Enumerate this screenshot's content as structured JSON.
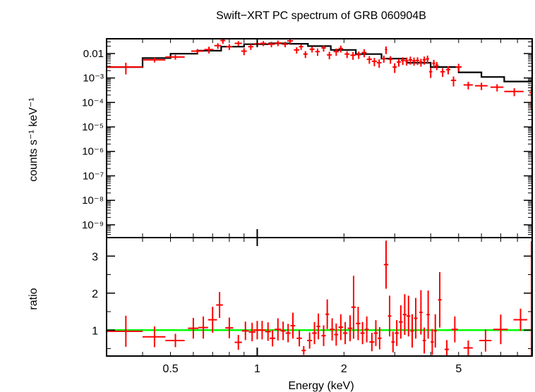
{
  "chart_data": [
    {
      "type": "line",
      "title": "Swift−XRT PC spectrum of GRB 060904B",
      "ylabel": "counts s⁻¹ keV⁻¹",
      "xscale": "log",
      "yscale": "log",
      "xlim": [
        0.3,
        9.0
      ],
      "ylim": [
        3e-10,
        0.04
      ],
      "ytick_labels": [
        "0.01",
        "10⁻³",
        "10⁻⁴",
        "10⁻⁵",
        "10⁻⁶",
        "10⁻⁷",
        "10⁻⁸",
        "10⁻⁹"
      ],
      "ytick_values": [
        0.01,
        0.001,
        0.0001,
        1e-05,
        1e-06,
        1e-07,
        1e-08,
        1e-09
      ],
      "model_color": "#000000",
      "data_color": "#ff0000",
      "model": {
        "x": [
          0.3,
          0.4,
          0.4,
          0.5,
          0.5,
          0.62,
          0.62,
          0.75,
          0.75,
          0.9,
          0.9,
          1.1,
          1.1,
          1.3,
          1.3,
          1.5,
          1.5,
          1.8,
          1.8,
          2.2,
          2.2,
          2.7,
          2.7,
          3.3,
          3.3,
          4.0,
          4.0,
          5.0,
          5.0,
          6.0,
          6.0,
          7.2,
          7.2,
          9.0
        ],
        "y": [
          0.0028,
          0.0028,
          0.0065,
          0.0065,
          0.0098,
          0.0098,
          0.013,
          0.013,
          0.019,
          0.019,
          0.024,
          0.024,
          0.026,
          0.026,
          0.025,
          0.025,
          0.02,
          0.02,
          0.014,
          0.014,
          0.0095,
          0.0095,
          0.0062,
          0.0062,
          0.0042,
          0.0042,
          0.0028,
          0.0028,
          0.0017,
          0.0017,
          0.0011,
          0.0011,
          0.00072,
          0.00072
        ]
      },
      "series": [
        {
          "x": [
            0.35,
            0.44,
            0.52,
            0.62,
            0.68,
            0.73,
            0.76,
            0.8,
            0.86,
            0.9,
            0.95,
            1.0,
            1.05,
            1.12,
            1.18,
            1.25,
            1.3,
            1.37,
            1.42,
            1.47,
            1.55,
            1.62,
            1.7,
            1.78,
            1.88,
            1.95,
            2.05,
            2.15,
            2.25,
            2.35,
            2.45,
            2.55,
            2.65,
            2.75,
            2.8,
            2.9,
            3.0,
            3.1,
            3.2,
            3.3,
            3.4,
            3.5,
            3.6,
            3.7,
            3.8,
            3.9,
            4.0,
            4.1,
            4.2,
            4.4,
            4.6,
            4.8,
            5.0,
            5.4,
            6.0,
            6.8,
            7.8,
            9.0
          ],
          "xerr": [
            0.05,
            0.04,
            0.04,
            0.03,
            0.025,
            0.02,
            0.015,
            0.02,
            0.025,
            0.02,
            0.02,
            0.025,
            0.025,
            0.03,
            0.03,
            0.03,
            0.03,
            0.03,
            0.025,
            0.025,
            0.03,
            0.03,
            0.03,
            0.035,
            0.04,
            0.035,
            0.04,
            0.045,
            0.045,
            0.045,
            0.05,
            0.05,
            0.05,
            0.05,
            0.025,
            0.05,
            0.05,
            0.05,
            0.05,
            0.05,
            0.05,
            0.05,
            0.05,
            0.05,
            0.05,
            0.05,
            0.05,
            0.05,
            0.06,
            0.08,
            0.08,
            0.1,
            0.12,
            0.2,
            0.3,
            0.35,
            0.6,
            0.2
          ],
          "y": [
            0.0028,
            0.0055,
            0.0072,
            0.0125,
            0.0145,
            0.021,
            0.034,
            0.019,
            0.026,
            0.0125,
            0.019,
            0.025,
            0.026,
            0.024,
            0.027,
            0.024,
            0.033,
            0.014,
            0.019,
            0.0095,
            0.015,
            0.012,
            0.017,
            0.0088,
            0.012,
            0.016,
            0.0095,
            0.0085,
            0.009,
            0.011,
            0.0058,
            0.0048,
            0.0042,
            0.0062,
            0.0145,
            0.0058,
            0.0028,
            0.0045,
            0.0052,
            0.005,
            0.0055,
            0.005,
            0.0052,
            0.0045,
            0.0055,
            0.006,
            0.0018,
            0.004,
            0.0033,
            0.0018,
            0.0022,
            0.0008,
            0.0028,
            0.00052,
            0.00048,
            0.00042,
            0.00028,
            0.00025
          ],
          "yerr": [
            0.0014,
            0.0012,
            0.0016,
            0.0028,
            0.0045,
            0.0055,
            0.009,
            0.005,
            0.006,
            0.004,
            0.005,
            0.006,
            0.006,
            0.006,
            0.007,
            0.006,
            0.008,
            0.004,
            0.005,
            0.003,
            0.004,
            0.004,
            0.005,
            0.003,
            0.004,
            0.005,
            0.003,
            0.003,
            0.003,
            0.004,
            0.002,
            0.0018,
            0.0016,
            0.002,
            0.005,
            0.002,
            0.0012,
            0.0016,
            0.0018,
            0.0018,
            0.002,
            0.0018,
            0.0018,
            0.0016,
            0.002,
            0.0022,
            0.0008,
            0.0015,
            0.0012,
            0.0007,
            0.0008,
            0.00035,
            0.001,
            0.00018,
            0.00016,
            0.00014,
            0.0001,
            0.0002
          ]
        }
      ]
    },
    {
      "type": "line",
      "xlabel": "Energy (keV)",
      "ylabel": "ratio",
      "xscale": "log",
      "xlim": [
        0.3,
        9.0
      ],
      "ylim": [
        0.3,
        3.5
      ],
      "xtick_labels": [
        "0.5",
        "1",
        "2",
        "5"
      ],
      "xtick_values": [
        0.5,
        1,
        2,
        5
      ],
      "ytick_labels": [
        "1",
        "2",
        "3"
      ],
      "ytick_values": [
        1,
        2,
        3
      ],
      "reference_line": 1.0,
      "reference_color": "#00ff00",
      "data_color": "#ff0000",
      "series": [
        {
          "x": [
            0.35,
            0.44,
            0.52,
            0.6,
            0.65,
            0.7,
            0.74,
            0.8,
            0.86,
            0.91,
            0.96,
            1.0,
            1.04,
            1.09,
            1.13,
            1.18,
            1.23,
            1.28,
            1.33,
            1.4,
            1.45,
            1.52,
            1.58,
            1.63,
            1.7,
            1.75,
            1.82,
            1.88,
            1.95,
            2.02,
            2.1,
            2.16,
            2.24,
            2.32,
            2.4,
            2.5,
            2.58,
            2.66,
            2.8,
            2.88,
            2.96,
            3.05,
            3.15,
            3.25,
            3.35,
            3.45,
            3.55,
            3.7,
            3.8,
            3.92,
            4.05,
            4.15,
            4.3,
            4.55,
            4.85,
            5.4,
            6.2,
            7.0,
            8.2,
            9.0
          ],
          "xerr": [
            0.05,
            0.04,
            0.04,
            0.025,
            0.025,
            0.025,
            0.02,
            0.025,
            0.025,
            0.025,
            0.025,
            0.03,
            0.03,
            0.025,
            0.025,
            0.03,
            0.025,
            0.025,
            0.025,
            0.03,
            0.025,
            0.03,
            0.03,
            0.025,
            0.03,
            0.025,
            0.035,
            0.03,
            0.035,
            0.035,
            0.04,
            0.04,
            0.04,
            0.04,
            0.04,
            0.05,
            0.04,
            0.04,
            0.05,
            0.04,
            0.04,
            0.05,
            0.05,
            0.05,
            0.05,
            0.05,
            0.05,
            0.05,
            0.05,
            0.05,
            0.05,
            0.05,
            0.06,
            0.08,
            0.12,
            0.2,
            0.3,
            0.4,
            0.45,
            0.1
          ],
          "y": [
            0.97,
            0.82,
            0.72,
            1.05,
            1.07,
            1.28,
            1.68,
            1.06,
            0.67,
            0.98,
            0.95,
            1.0,
            1.0,
            0.96,
            0.78,
            1.02,
            0.98,
            0.92,
            1.12,
            0.78,
            0.45,
            0.72,
            0.92,
            1.1,
            0.85,
            1.43,
            1.02,
            0.88,
            1.08,
            0.92,
            1.05,
            1.62,
            1.18,
            0.92,
            1.02,
            0.68,
            0.92,
            0.78,
            2.77,
            1.38,
            0.68,
            0.92,
            1.22,
            1.42,
            1.38,
            0.98,
            1.32,
            1.48,
            0.72,
            1.42,
            0.68,
            0.98,
            1.82,
            0.48,
            1.02,
            0.52,
            0.72,
            1.02,
            1.28,
            0.5
          ],
          "yerr": [
            0.42,
            0.28,
            0.18,
            0.28,
            0.3,
            0.35,
            0.35,
            0.28,
            0.2,
            0.25,
            0.25,
            0.25,
            0.25,
            0.25,
            0.22,
            0.3,
            0.25,
            0.25,
            0.35,
            0.22,
            0.12,
            0.22,
            0.3,
            0.35,
            0.28,
            0.4,
            0.3,
            0.3,
            0.35,
            0.3,
            0.35,
            0.85,
            0.45,
            0.3,
            0.35,
            0.25,
            0.35,
            0.3,
            0.65,
            0.55,
            0.28,
            0.35,
            0.45,
            0.55,
            0.55,
            0.45,
            0.55,
            0.6,
            0.35,
            0.65,
            0.35,
            0.45,
            0.75,
            0.25,
            0.35,
            0.2,
            0.3,
            0.4,
            0.3,
            2.9
          ]
        }
      ]
    }
  ]
}
